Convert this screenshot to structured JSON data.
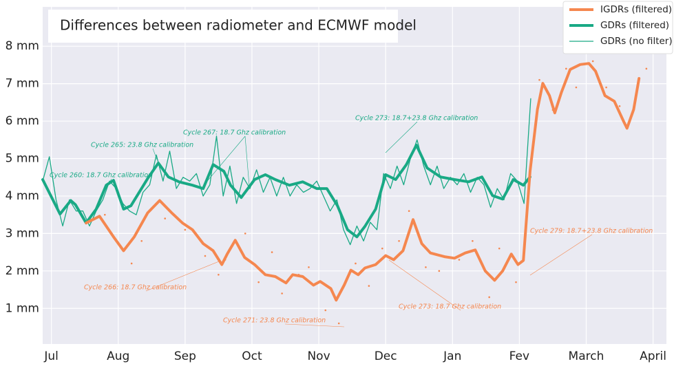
{
  "chart_data": {
    "type": "line",
    "title": "Differences between radiometer and ECMWF model",
    "xlim": [
      -0.13,
      9.2
    ],
    "ylim": [
      0.05,
      9.05
    ],
    "xticks": [
      {
        "value": 0,
        "label": "Jul"
      },
      {
        "value": 1,
        "label": "Aug"
      },
      {
        "value": 2,
        "label": "Sep"
      },
      {
        "value": 3,
        "label": "Oct"
      },
      {
        "value": 4,
        "label": "Nov"
      },
      {
        "value": 5,
        "label": "Dec"
      },
      {
        "value": 6,
        "label": "Jan"
      },
      {
        "value": 7,
        "label": "Fev"
      },
      {
        "value": 8,
        "label": "March"
      },
      {
        "value": 9,
        "label": "April"
      }
    ],
    "yticks": [
      {
        "value": 1,
        "label": "1 mm"
      },
      {
        "value": 2,
        "label": "2 mm"
      },
      {
        "value": 3,
        "label": "3 mm"
      },
      {
        "value": 4,
        "label": "4 mm"
      },
      {
        "value": 5,
        "label": "5 mm"
      },
      {
        "value": 6,
        "label": "6 mm"
      },
      {
        "value": 7,
        "label": "7 mm"
      },
      {
        "value": 8,
        "label": "8 mm"
      }
    ],
    "grid": true,
    "legend": "upper right",
    "series": [
      {
        "name": "IGDRs (filtered)",
        "color": "#f5874f",
        "width": 4,
        "x": [
          0.52,
          0.72,
          0.93,
          1.08,
          1.24,
          1.44,
          1.62,
          1.8,
          1.96,
          2.11,
          2.27,
          2.42,
          2.55,
          2.63,
          2.75,
          2.89,
          3.04,
          3.2,
          3.35,
          3.51,
          3.61,
          3.76,
          3.92,
          4.02,
          4.18,
          4.26,
          4.38,
          4.48,
          4.59,
          4.69,
          4.85,
          5.0,
          5.12,
          5.26,
          5.41,
          5.54,
          5.67,
          5.88,
          6.03,
          6.19,
          6.34,
          6.49,
          6.63,
          6.75,
          6.88,
          6.98,
          7.06,
          7.16,
          7.27,
          7.35,
          7.45,
          7.53,
          7.63,
          7.76,
          7.91,
          8.04,
          8.14,
          8.28,
          8.42,
          8.56,
          8.61,
          8.71,
          8.79
        ],
        "values": [
          3.28,
          3.46,
          2.91,
          2.54,
          2.91,
          3.55,
          3.88,
          3.55,
          3.28,
          3.1,
          2.73,
          2.54,
          2.17,
          2.45,
          2.82,
          2.36,
          2.17,
          1.9,
          1.85,
          1.68,
          1.9,
          1.85,
          1.62,
          1.72,
          1.53,
          1.22,
          1.62,
          2.02,
          1.9,
          2.08,
          2.17,
          2.41,
          2.3,
          2.54,
          3.37,
          2.73,
          2.48,
          2.38,
          2.34,
          2.48,
          2.56,
          2.0,
          1.75,
          2.0,
          2.45,
          2.17,
          2.28,
          4.66,
          6.31,
          7.01,
          6.68,
          6.22,
          6.77,
          7.38,
          7.51,
          7.54,
          7.33,
          6.68,
          6.53,
          5.99,
          5.81,
          6.31,
          7.14
        ]
      },
      {
        "name": "GDRs (filtered)",
        "color": "#19a985",
        "width": 4,
        "x": [
          -0.13,
          0.13,
          0.29,
          0.36,
          0.52,
          0.67,
          0.82,
          0.93,
          1.08,
          1.19,
          1.44,
          1.6,
          1.75,
          1.91,
          2.11,
          2.27,
          2.42,
          2.58,
          2.68,
          2.84,
          3.04,
          3.2,
          3.35,
          3.56,
          3.76,
          3.97,
          4.12,
          4.28,
          4.43,
          4.57,
          4.69,
          4.85,
          5.0,
          5.15,
          5.31,
          5.46,
          5.62,
          5.82,
          6.03,
          6.24,
          6.44,
          6.6,
          6.75,
          6.91,
          7.06,
          7.16
        ],
        "values": [
          4.44,
          3.52,
          3.88,
          3.77,
          3.28,
          3.65,
          4.29,
          4.42,
          3.65,
          3.74,
          4.47,
          4.88,
          4.51,
          4.38,
          4.29,
          4.2,
          4.84,
          4.66,
          4.29,
          3.96,
          4.44,
          4.57,
          4.44,
          4.29,
          4.38,
          4.2,
          4.2,
          3.74,
          3.1,
          2.91,
          3.19,
          3.65,
          4.57,
          4.44,
          4.84,
          5.36,
          4.75,
          4.51,
          4.44,
          4.38,
          4.51,
          4.01,
          3.92,
          4.44,
          4.29,
          4.51
        ]
      },
      {
        "name": "GDRs (no filter)",
        "color": "#19a985",
        "width": 1.3,
        "x": [
          -0.13,
          -0.03,
          0.07,
          0.17,
          0.27,
          0.37,
          0.47,
          0.57,
          0.67,
          0.77,
          0.87,
          0.97,
          1.07,
          1.17,
          1.27,
          1.37,
          1.47,
          1.57,
          1.67,
          1.77,
          1.87,
          1.97,
          2.07,
          2.17,
          2.27,
          2.37,
          2.47,
          2.57,
          2.67,
          2.77,
          2.87,
          2.97,
          3.07,
          3.17,
          3.27,
          3.37,
          3.47,
          3.57,
          3.67,
          3.77,
          3.87,
          3.97,
          4.07,
          4.17,
          4.27,
          4.37,
          4.47,
          4.57,
          4.67,
          4.77,
          4.87,
          4.97,
          5.07,
          5.17,
          5.27,
          5.37,
          5.47,
          5.57,
          5.67,
          5.77,
          5.87,
          5.97,
          6.07,
          6.17,
          6.27,
          6.37,
          6.47,
          6.57,
          6.67,
          6.77,
          6.87,
          6.97,
          7.07,
          7.17
        ],
        "values": [
          4.4,
          5.05,
          3.9,
          3.2,
          3.9,
          3.6,
          3.6,
          3.2,
          3.6,
          3.9,
          4.4,
          4.2,
          3.8,
          3.6,
          3.5,
          4.1,
          4.3,
          5.1,
          4.4,
          5.2,
          4.2,
          4.5,
          4.4,
          4.6,
          4.0,
          4.3,
          5.6,
          4.0,
          4.8,
          3.8,
          4.5,
          4.2,
          4.7,
          4.1,
          4.5,
          4.0,
          4.5,
          4.0,
          4.3,
          4.1,
          4.2,
          4.4,
          4.0,
          3.6,
          3.9,
          3.1,
          2.7,
          3.2,
          2.8,
          3.3,
          3.1,
          4.6,
          4.2,
          4.8,
          4.3,
          5.0,
          5.5,
          4.8,
          4.3,
          4.8,
          4.2,
          4.5,
          4.3,
          4.6,
          4.1,
          4.5,
          4.3,
          3.7,
          4.2,
          3.9,
          4.6,
          4.4,
          3.8,
          6.6
        ]
      }
    ],
    "points": {
      "color": "#f5874f",
      "x": [
        0.8,
        1.2,
        1.35,
        1.7,
        2.0,
        2.3,
        2.5,
        2.6,
        2.9,
        3.1,
        3.3,
        3.45,
        3.7,
        3.85,
        4.1,
        4.3,
        4.55,
        4.75,
        4.95,
        5.2,
        5.35,
        5.6,
        5.8,
        6.1,
        6.3,
        6.55,
        6.7,
        6.95,
        7.3,
        7.5,
        7.7,
        7.85,
        8.1,
        8.3,
        8.5,
        8.9
      ],
      "values": [
        3.5,
        2.2,
        2.8,
        3.4,
        3.1,
        2.4,
        1.9,
        2.3,
        3.0,
        1.7,
        2.5,
        1.4,
        1.9,
        2.1,
        0.95,
        0.6,
        2.2,
        1.6,
        2.6,
        2.8,
        3.6,
        2.1,
        2.0,
        2.3,
        2.8,
        1.3,
        2.6,
        1.7,
        7.1,
        6.3,
        7.4,
        6.9,
        7.6,
        6.9,
        6.4,
        7.4
      ]
    },
    "annotations": [
      {
        "text": "Cycle 260: 18.7 Ghz calibration",
        "color": "#19a985"
      },
      {
        "text": "Cycle 265: 23.8 Ghz calibration",
        "color": "#19a985"
      },
      {
        "text": "Cycle 267: 18.7 Ghz calibration",
        "color": "#19a985"
      },
      {
        "text": "Cycle 273: 18.7+23.8 Ghz calibration",
        "color": "#19a985"
      },
      {
        "text": "Cycle 266: 18.7 Ghz calibration",
        "color": "#f5874f"
      },
      {
        "text": "Cycle 271: 23.8 Ghz calibration",
        "color": "#f5874f"
      },
      {
        "text": "Cycle 273: 18.7 Ghz calibration",
        "color": "#f5874f"
      },
      {
        "text": "Cycle 279: 18.7+23.8 Ghz calibration",
        "color": "#f5874f"
      }
    ]
  }
}
